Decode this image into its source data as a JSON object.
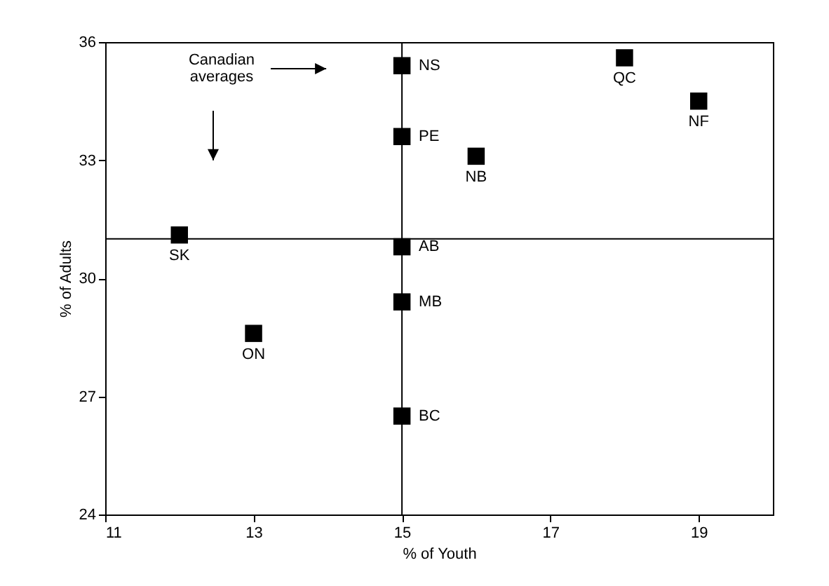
{
  "chart_data": {
    "type": "scatter",
    "xlabel": "% of Youth",
    "ylabel": "% of Adults",
    "x": [
      15,
      15,
      18,
      19,
      16,
      12,
      15,
      15,
      13,
      15
    ],
    "values": [
      35.4,
      33.6,
      35.6,
      34.5,
      33.1,
      31.1,
      30.8,
      29.4,
      28.6,
      26.5
    ],
    "color": "#000000",
    "marker": "square",
    "xlim": [
      11,
      20
    ],
    "xticks": [
      11,
      13,
      15,
      17,
      19
    ],
    "ylim": [
      24,
      36
    ],
    "yticks": [
      24,
      27,
      30,
      33,
      36
    ],
    "grid": false,
    "ref_lines": [
      {
        "axis": "x",
        "value": 15
      },
      {
        "axis": "y",
        "value": 31.0
      }
    ],
    "annotations": [
      "Canadian averages",
      {
        "text": "NS",
        "x": 15,
        "y": 35.4
      },
      {
        "text": "PE",
        "x": 15,
        "y": 33.6
      },
      {
        "text": "QC",
        "x": 18,
        "y": 35.6
      },
      {
        "text": "NF",
        "x": 19,
        "y": 34.5
      },
      {
        "text": "NB",
        "x": 16,
        "y": 33.1
      },
      {
        "text": "SK",
        "x": 12,
        "y": 31.1
      },
      {
        "text": "AB",
        "x": 15,
        "y": 30.8
      },
      {
        "text": "MB",
        "x": 15,
        "y": 29.4
      },
      {
        "text": "ON",
        "x": 13,
        "y": 28.6
      },
      {
        "text": "BC",
        "x": 15,
        "y": 26.5
      }
    ]
  }
}
